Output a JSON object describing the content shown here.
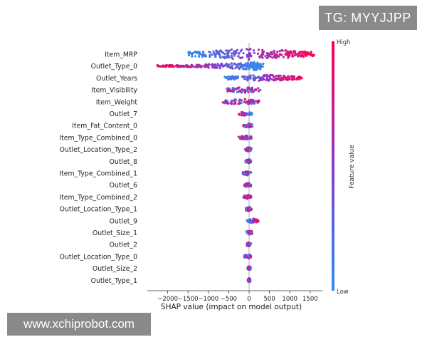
{
  "watermark_top": "TG: MYYJJPP",
  "watermark_bottom": "www.xchiprobot.com",
  "colors": {
    "low": "#2e8ff0",
    "high": "#ff0052",
    "axis": "#333333",
    "zero_line": "#999999"
  },
  "chart_data": {
    "type": "beeswarm",
    "title": "",
    "xlabel": "SHAP value (impact on model output)",
    "xlim": [
      -2500,
      1800
    ],
    "xticks": [
      -2000,
      -1500,
      -1000,
      -500,
      0,
      500,
      1000,
      1500
    ],
    "xtick_labels": [
      "−2000",
      "−1500",
      "−1000",
      "−500",
      "0",
      "500",
      "1000",
      "1500"
    ],
    "colorbar": {
      "label": "Feature value",
      "high_label": "High",
      "low_label": "Low"
    },
    "features": [
      {
        "name": "Item_MRP",
        "min": -1500,
        "max": 1600,
        "low_side": "negative",
        "peak": 1.0
      },
      {
        "name": "Outlet_Type_0",
        "min": -2250,
        "max": 350,
        "low_side": "positive",
        "peak": 0.6
      },
      {
        "name": "Outlet_Years",
        "min": -600,
        "max": 1300,
        "low_side": "negative",
        "peak": 0.5
      },
      {
        "name": "Item_Visibility",
        "min": -550,
        "max": 280,
        "low_side": "mixed",
        "peak": 0.45
      },
      {
        "name": "Item_Weight",
        "min": -650,
        "max": 250,
        "low_side": "mixed",
        "peak": 0.45
      },
      {
        "name": "Outlet_7",
        "min": -280,
        "max": 80,
        "low_side": "positive",
        "peak": 0.3
      },
      {
        "name": "Item_Fat_Content_0",
        "min": -150,
        "max": 90,
        "low_side": "mixed",
        "peak": 0.3
      },
      {
        "name": "Item_Type_Combined_0",
        "min": -260,
        "max": 60,
        "low_side": "mixed",
        "peak": 0.3
      },
      {
        "name": "Outlet_Location_Type_2",
        "min": -100,
        "max": 60,
        "low_side": "mixed",
        "peak": 0.3
      },
      {
        "name": "Outlet_8",
        "min": -90,
        "max": 50,
        "low_side": "mixed",
        "peak": 0.3
      },
      {
        "name": "Item_Type_Combined_1",
        "min": -160,
        "max": 50,
        "low_side": "mixed",
        "peak": 0.3
      },
      {
        "name": "Outlet_6",
        "min": -120,
        "max": 60,
        "low_side": "mixed",
        "peak": 0.3
      },
      {
        "name": "Item_Type_Combined_2",
        "min": -140,
        "max": 60,
        "low_side": "mixed",
        "peak": 0.3
      },
      {
        "name": "Outlet_Location_Type_1",
        "min": -90,
        "max": 60,
        "low_side": "mixed",
        "peak": 0.3
      },
      {
        "name": "Outlet_9",
        "min": -60,
        "max": 230,
        "low_side": "negative",
        "peak": 0.3
      },
      {
        "name": "Outlet_Size_1",
        "min": -70,
        "max": 80,
        "low_side": "mixed",
        "peak": 0.3
      },
      {
        "name": "Outlet_2",
        "min": -60,
        "max": 50,
        "low_side": "mixed",
        "peak": 0.3
      },
      {
        "name": "Outlet_Location_Type_0",
        "min": -120,
        "max": 50,
        "low_side": "mixed",
        "peak": 0.3
      },
      {
        "name": "Outlet_Size_2",
        "min": -40,
        "max": 40,
        "low_side": "mixed",
        "peak": 0.3
      },
      {
        "name": "Outlet_Type_1",
        "min": -30,
        "max": 30,
        "low_side": "mixed",
        "peak": 0.3
      }
    ]
  }
}
